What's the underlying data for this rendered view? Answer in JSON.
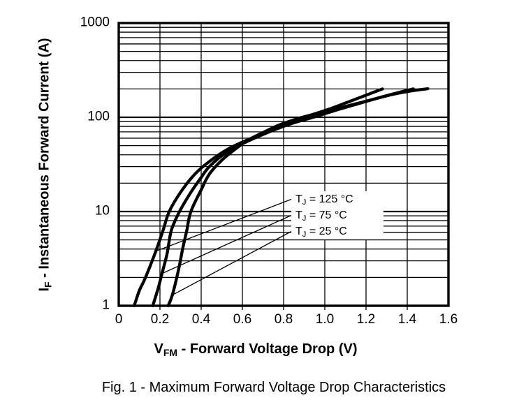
{
  "figure": {
    "caption": "Fig. 1 - Maximum Forward Voltage Drop Characteristics"
  },
  "chart_data": {
    "type": "line",
    "title": "",
    "xlabel": {
      "prefix": "V",
      "sub": "FM",
      "rest": " - Forward Voltage Drop (V)"
    },
    "ylabel": {
      "prefix": "I",
      "sub": "F",
      "rest": " - Instantaneous Forward Current (A)"
    },
    "x_axis": {
      "scale": "linear",
      "min": 0,
      "max": 1.6,
      "tick_values": [
        0,
        0.2,
        0.4,
        0.6,
        0.8,
        1.0,
        1.2,
        1.4,
        1.6
      ],
      "tick_labels": [
        "0",
        "0.2",
        "0.4",
        "0.6",
        "0.8",
        "1.0",
        "1.2",
        "1.4",
        "1.6"
      ],
      "minor_grid": false
    },
    "y_axis": {
      "scale": "log",
      "min": 1,
      "max": 1000,
      "tick_values": [
        1,
        10,
        100,
        1000
      ],
      "tick_labels": [
        "1",
        "10",
        "100",
        "1000"
      ],
      "minor_grid": true
    },
    "grid": true,
    "legend_position": "inside-middle-right",
    "colors": {
      "curve": "#000000",
      "grid": "#000000",
      "background": "#ffffff"
    },
    "series": [
      {
        "name": "TJ = 125 °C",
        "label": {
          "prefix": "T",
          "sub": "J",
          "rest": " = 125 °C"
        },
        "callout_point": [
          0.18,
          3.8
        ],
        "points": [
          [
            0.075,
            1
          ],
          [
            0.1,
            1.45
          ],
          [
            0.13,
            2
          ],
          [
            0.18,
            3.8
          ],
          [
            0.215,
            6.3
          ],
          [
            0.245,
            10
          ],
          [
            0.3,
            16
          ],
          [
            0.37,
            25
          ],
          [
            0.44,
            34
          ],
          [
            0.53,
            46
          ],
          [
            0.62,
            57
          ],
          [
            0.74,
            73
          ],
          [
            0.86,
            90
          ],
          [
            0.97,
            107
          ],
          [
            1.1,
            130
          ],
          [
            1.22,
            152
          ],
          [
            1.33,
            175
          ],
          [
            1.43,
            192
          ],
          [
            1.5,
            201
          ]
        ]
      },
      {
        "name": "TJ = 75 °C",
        "label": {
          "prefix": "T",
          "sub": "J",
          "rest": " = 75 °C"
        },
        "callout_point": [
          0.21,
          2.2
        ],
        "points": [
          [
            0.165,
            1
          ],
          [
            0.19,
            1.5
          ],
          [
            0.21,
            2.2
          ],
          [
            0.235,
            3.6
          ],
          [
            0.255,
            6.3
          ],
          [
            0.295,
            10
          ],
          [
            0.35,
            16
          ],
          [
            0.4,
            23
          ],
          [
            0.44,
            30
          ],
          [
            0.52,
            42
          ],
          [
            0.62,
            55
          ],
          [
            0.73,
            70
          ],
          [
            0.84,
            86
          ],
          [
            0.95,
            101
          ],
          [
            1.06,
            120
          ],
          [
            1.17,
            141
          ],
          [
            1.28,
            165
          ],
          [
            1.37,
            186
          ],
          [
            1.43,
            200
          ]
        ]
      },
      {
        "name": "TJ = 25 °C",
        "label": {
          "prefix": "T",
          "sub": "J",
          "rest": " = 25 °C"
        },
        "callout_point": [
          0.26,
          1.3
        ],
        "points": [
          [
            0.24,
            1
          ],
          [
            0.26,
            1.3
          ],
          [
            0.29,
            2.4
          ],
          [
            0.31,
            4
          ],
          [
            0.33,
            6.3
          ],
          [
            0.35,
            10
          ],
          [
            0.4,
            17
          ],
          [
            0.44,
            25
          ],
          [
            0.5,
            35
          ],
          [
            0.56,
            45
          ],
          [
            0.62,
            56
          ],
          [
            0.7,
            69
          ],
          [
            0.78,
            83
          ],
          [
            0.87,
            97
          ],
          [
            0.94,
            107
          ],
          [
            1.03,
            124
          ],
          [
            1.13,
            150
          ],
          [
            1.21,
            175
          ],
          [
            1.28,
            200
          ]
        ]
      }
    ]
  }
}
